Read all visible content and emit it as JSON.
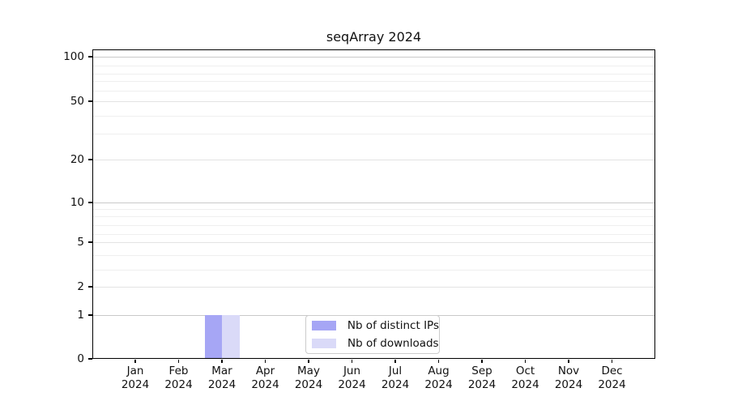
{
  "title": "seqArray 2024",
  "chart_data": {
    "type": "bar",
    "title": "seqArray 2024",
    "months": [
      "Jan",
      "Feb",
      "Mar",
      "Apr",
      "May",
      "Jun",
      "Jul",
      "Aug",
      "Sep",
      "Oct",
      "Nov",
      "Dec"
    ],
    "year": "2024",
    "categories": [
      "Jan 2024",
      "Feb 2024",
      "Mar 2024",
      "Apr 2024",
      "May 2024",
      "Jun 2024",
      "Jul 2024",
      "Aug 2024",
      "Sep 2024",
      "Oct 2024",
      "Nov 2024",
      "Dec 2024"
    ],
    "series": [
      {
        "name": "Nb of distinct IPs",
        "color": "#a6a6f5",
        "values": [
          0,
          0,
          1,
          0,
          0,
          0,
          0,
          0,
          0,
          0,
          0,
          0
        ]
      },
      {
        "name": "Nb of downloads",
        "color": "#dadaf8",
        "values": [
          0,
          0,
          1,
          0,
          0,
          0,
          0,
          0,
          0,
          0,
          0,
          0
        ]
      }
    ],
    "yticks": [
      0,
      1,
      2,
      5,
      10,
      20,
      50,
      100
    ],
    "y_minor_ticks": [
      3,
      4,
      6,
      7,
      8,
      9,
      30,
      40,
      60,
      70,
      80,
      90
    ],
    "y_scale": "log-like",
    "xlabel": "",
    "ylabel": "",
    "grid": true,
    "legend_position": "lower center"
  },
  "colors": {
    "grid_decade": "#c9c9c9",
    "grid_sub": "#e3e3e3",
    "grid_minor": "#efefef",
    "axis": "#000000"
  }
}
